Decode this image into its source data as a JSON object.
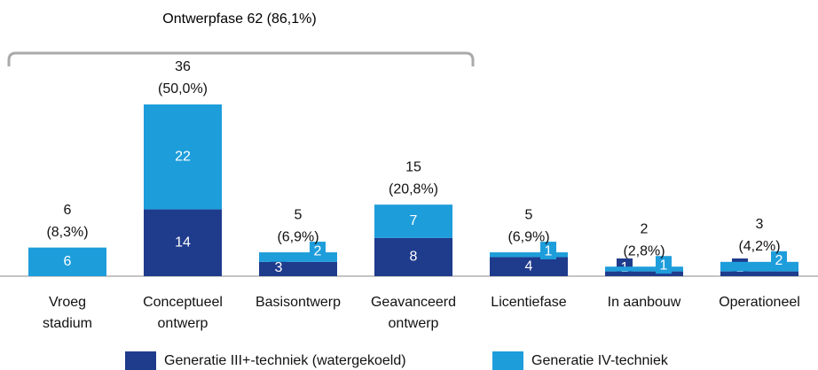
{
  "chart_data": {
    "type": "stacked_bar",
    "annotation": "Ontwerpfase 62 (86,1%)",
    "categories": [
      "Vroeg stadium",
      "Conceptueel ontwerp",
      "Basisontwerp",
      "Geavanceerd ontwerp",
      "Licentiefase",
      "In aanbouw",
      "Operationeel"
    ],
    "series": [
      {
        "name": "Generatie III+-techniek (watergekoeld)",
        "color": "#1f3b8c",
        "values": [
          0,
          14,
          3,
          8,
          4,
          1,
          1
        ]
      },
      {
        "name": "Generatie IV-techniek",
        "color": "#1e9ddb",
        "values": [
          6,
          22,
          2,
          7,
          1,
          1,
          2
        ]
      }
    ],
    "totals": [
      6,
      36,
      5,
      15,
      5,
      2,
      3
    ],
    "total_percent": [
      8.3,
      50.0,
      6.9,
      20.8,
      6.9,
      2.8,
      4.2
    ],
    "total_percent_labels": [
      "(8,3%)",
      "(50,0%)",
      "(6,9%)",
      "(20,8%)",
      "(6,9%)",
      "(2,8%)",
      "(4,2%)"
    ],
    "legend": "bottom"
  }
}
